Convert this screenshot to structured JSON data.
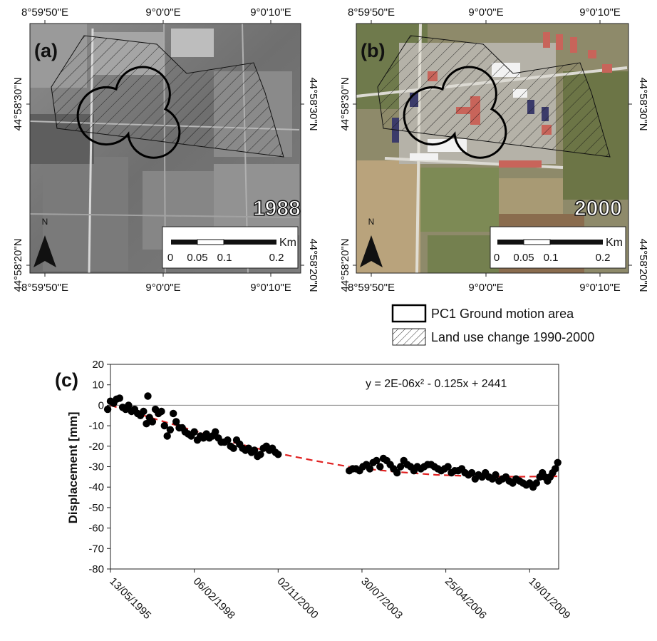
{
  "panel_a": {
    "label": "(a)",
    "year": "1988",
    "x_ticks": [
      "8°59'50\"E",
      "9°0'0\"E",
      "9°0'10\"E"
    ],
    "y_ticks": [
      "44°58'30\"N",
      "44°58'20\"N"
    ],
    "north_label": "N",
    "scale_unit": "Km",
    "scale_ticks": [
      "0",
      "0.05",
      "0.1",
      "0.2"
    ]
  },
  "panel_b": {
    "label": "(b)",
    "year": "2000",
    "x_ticks": [
      "8°59'50\"E",
      "9°0'0\"E",
      "9°0'10\"E"
    ],
    "y_ticks": [
      "44°58'30\"N",
      "44°58'20\"N"
    ],
    "north_label": "N",
    "scale_unit": "Km",
    "scale_ticks": [
      "0",
      "0.05",
      "0.1",
      "0.2"
    ]
  },
  "legend": {
    "items": [
      "PC1 Ground motion area",
      "Land use change 1990-2000"
    ]
  },
  "chart_data": {
    "type": "scatter",
    "panel_label": "(c)",
    "title": "",
    "xlabel": "",
    "ylabel": "Displacement [mm]",
    "ylim": [
      -80,
      20
    ],
    "y_ticks": [
      20,
      10,
      0,
      -10,
      -20,
      -30,
      -40,
      -50,
      -60,
      -70,
      -80
    ],
    "y_tick_labels": [
      "20",
      "10",
      "0",
      "-10",
      "-20",
      "-30",
      "-40",
      "-50",
      "-60",
      "-70",
      "-80"
    ],
    "x_range": [
      "1995-05-13",
      "2009-12-31"
    ],
    "x_tick_labels": [
      "13/05/1995",
      "06/02/1998",
      "02/11/2000",
      "30/07/2003",
      "25/04/2006",
      "19/01/2009"
    ],
    "x_ticks": [
      "1995-05-13",
      "1998-02-06",
      "2000-11-02",
      "2003-07-30",
      "2006-04-25",
      "2009-01-19"
    ],
    "grid": false,
    "trendline": {
      "equation": "y = 2E-06x² - 0.125x + 2441",
      "style": "dashed",
      "color": "#e02020",
      "points": [
        {
          "x": "1995-05-13",
          "y": 0
        },
        {
          "x": "1996-09-01",
          "y": -6
        },
        {
          "x": "1998-01-01",
          "y": -12
        },
        {
          "x": "1999-05-01",
          "y": -18
        },
        {
          "x": "2000-09-01",
          "y": -23
        },
        {
          "x": "2002-01-01",
          "y": -27
        },
        {
          "x": "2003-05-01",
          "y": -30.5
        },
        {
          "x": "2004-09-01",
          "y": -32.5
        },
        {
          "x": "2006-01-01",
          "y": -34
        },
        {
          "x": "2007-05-01",
          "y": -34.7
        },
        {
          "x": "2008-09-01",
          "y": -34.9
        },
        {
          "x": "2009-12-31",
          "y": -34.7
        }
      ]
    },
    "series": [
      {
        "color": "#000000",
        "points": [
          {
            "x": "1995-04-10",
            "y": -2
          },
          {
            "x": "1995-05-13",
            "y": 2
          },
          {
            "x": "1995-06-20",
            "y": 1
          },
          {
            "x": "1995-07-25",
            "y": 3
          },
          {
            "x": "1995-08-30",
            "y": 3.5
          },
          {
            "x": "1995-10-05",
            "y": -1
          },
          {
            "x": "1995-11-10",
            "y": -2
          },
          {
            "x": "1995-12-15",
            "y": 0
          },
          {
            "x": "1996-01-20",
            "y": -3
          },
          {
            "x": "1996-02-25",
            "y": -2
          },
          {
            "x": "1996-04-01",
            "y": -4
          },
          {
            "x": "1996-05-05",
            "y": -5
          },
          {
            "x": "1996-06-10",
            "y": -3
          },
          {
            "x": "1996-07-15",
            "y": -9
          },
          {
            "x": "1996-08-01",
            "y": 4.5
          },
          {
            "x": "1996-08-20",
            "y": -6
          },
          {
            "x": "1996-09-25",
            "y": -8
          },
          {
            "x": "1996-10-30",
            "y": -2
          },
          {
            "x": "1996-12-05",
            "y": -4
          },
          {
            "x": "1997-01-10",
            "y": -3
          },
          {
            "x": "1997-02-15",
            "y": -10
          },
          {
            "x": "1997-03-20",
            "y": -15
          },
          {
            "x": "1997-04-25",
            "y": -12
          },
          {
            "x": "1997-06-01",
            "y": -4
          },
          {
            "x": "1997-07-05",
            "y": -8
          },
          {
            "x": "1997-08-10",
            "y": -11
          },
          {
            "x": "1997-09-15",
            "y": -11
          },
          {
            "x": "1997-10-20",
            "y": -13
          },
          {
            "x": "1997-11-25",
            "y": -14
          },
          {
            "x": "1998-01-01",
            "y": -15
          },
          {
            "x": "1998-02-06",
            "y": -13
          },
          {
            "x": "1998-03-15",
            "y": -17
          },
          {
            "x": "1998-04-20",
            "y": -15
          },
          {
            "x": "1998-05-25",
            "y": -16
          },
          {
            "x": "1998-07-01",
            "y": -14
          },
          {
            "x": "1998-08-05",
            "y": -16
          },
          {
            "x": "1998-09-10",
            "y": -15
          },
          {
            "x": "1998-10-15",
            "y": -13
          },
          {
            "x": "1998-11-20",
            "y": -16
          },
          {
            "x": "1998-12-25",
            "y": -18
          },
          {
            "x": "1999-02-01",
            "y": -18
          },
          {
            "x": "1999-03-10",
            "y": -17
          },
          {
            "x": "1999-04-15",
            "y": -20
          },
          {
            "x": "1999-05-20",
            "y": -21
          },
          {
            "x": "1999-06-25",
            "y": -17
          },
          {
            "x": "1999-08-01",
            "y": -19
          },
          {
            "x": "1999-09-05",
            "y": -21
          },
          {
            "x": "1999-10-10",
            "y": -22
          },
          {
            "x": "1999-11-15",
            "y": -21
          },
          {
            "x": "1999-12-20",
            "y": -23
          },
          {
            "x": "2000-01-25",
            "y": -22
          },
          {
            "x": "2000-03-01",
            "y": -25
          },
          {
            "x": "2000-04-05",
            "y": -24
          },
          {
            "x": "2000-05-10",
            "y": -21
          },
          {
            "x": "2000-06-15",
            "y": -20
          },
          {
            "x": "2000-07-20",
            "y": -22
          },
          {
            "x": "2000-08-25",
            "y": -21
          },
          {
            "x": "2000-10-01",
            "y": -23
          },
          {
            "x": "2000-11-02",
            "y": -24
          },
          {
            "x": "2003-03-01",
            "y": -32
          },
          {
            "x": "2003-04-10",
            "y": -31
          },
          {
            "x": "2003-05-20",
            "y": -31
          },
          {
            "x": "2003-07-01",
            "y": -32
          },
          {
            "x": "2003-08-10",
            "y": -30
          },
          {
            "x": "2003-09-20",
            "y": -29
          },
          {
            "x": "2003-11-01",
            "y": -31
          },
          {
            "x": "2003-12-10",
            "y": -28
          },
          {
            "x": "2004-01-20",
            "y": -27
          },
          {
            "x": "2004-03-01",
            "y": -30
          },
          {
            "x": "2004-04-10",
            "y": -26
          },
          {
            "x": "2004-05-20",
            "y": -27
          },
          {
            "x": "2004-07-01",
            "y": -29
          },
          {
            "x": "2004-08-10",
            "y": -31
          },
          {
            "x": "2004-09-20",
            "y": -33
          },
          {
            "x": "2004-11-01",
            "y": -30
          },
          {
            "x": "2004-12-10",
            "y": -27
          },
          {
            "x": "2005-01-20",
            "y": -29
          },
          {
            "x": "2005-03-01",
            "y": -30
          },
          {
            "x": "2005-04-10",
            "y": -32
          },
          {
            "x": "2005-05-20",
            "y": -30
          },
          {
            "x": "2005-07-01",
            "y": -31
          },
          {
            "x": "2005-08-10",
            "y": -30
          },
          {
            "x": "2005-09-20",
            "y": -29
          },
          {
            "x": "2005-11-01",
            "y": -29
          },
          {
            "x": "2005-12-10",
            "y": -30
          },
          {
            "x": "2006-01-20",
            "y": -31
          },
          {
            "x": "2006-03-01",
            "y": -32
          },
          {
            "x": "2006-04-10",
            "y": -31
          },
          {
            "x": "2006-05-20",
            "y": -30
          },
          {
            "x": "2006-07-01",
            "y": -33
          },
          {
            "x": "2006-08-10",
            "y": -32
          },
          {
            "x": "2006-09-20",
            "y": -32
          },
          {
            "x": "2006-11-01",
            "y": -31
          },
          {
            "x": "2006-12-10",
            "y": -33
          },
          {
            "x": "2007-01-20",
            "y": -34
          },
          {
            "x": "2007-03-01",
            "y": -33
          },
          {
            "x": "2007-04-10",
            "y": -36
          },
          {
            "x": "2007-05-20",
            "y": -34
          },
          {
            "x": "2007-07-01",
            "y": -35
          },
          {
            "x": "2007-08-10",
            "y": -33
          },
          {
            "x": "2007-09-20",
            "y": -35
          },
          {
            "x": "2007-11-01",
            "y": -36
          },
          {
            "x": "2007-12-10",
            "y": -34
          },
          {
            "x": "2008-01-20",
            "y": -37
          },
          {
            "x": "2008-03-01",
            "y": -36
          },
          {
            "x": "2008-04-10",
            "y": -35
          },
          {
            "x": "2008-05-20",
            "y": -37
          },
          {
            "x": "2008-07-01",
            "y": -38
          },
          {
            "x": "2008-08-10",
            "y": -36
          },
          {
            "x": "2008-09-20",
            "y": -37
          },
          {
            "x": "2008-11-01",
            "y": -38
          },
          {
            "x": "2008-12-10",
            "y": -39
          },
          {
            "x": "2009-01-19",
            "y": -38
          },
          {
            "x": "2009-03-01",
            "y": -40
          },
          {
            "x": "2009-04-10",
            "y": -38
          },
          {
            "x": "2009-05-20",
            "y": -35
          },
          {
            "x": "2009-06-20",
            "y": -33
          },
          {
            "x": "2009-07-20",
            "y": -35
          },
          {
            "x": "2009-08-20",
            "y": -37
          },
          {
            "x": "2009-09-20",
            "y": -35
          },
          {
            "x": "2009-10-20",
            "y": -33
          },
          {
            "x": "2009-11-20",
            "y": -31
          },
          {
            "x": "2009-12-20",
            "y": -28
          }
        ]
      }
    ]
  }
}
